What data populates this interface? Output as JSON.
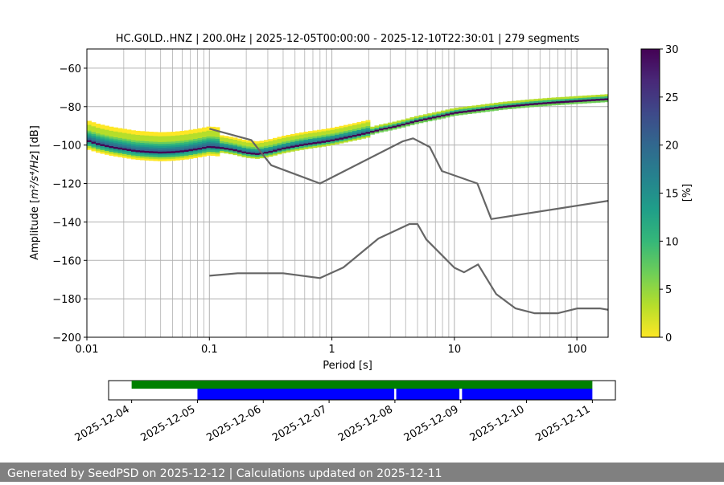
{
  "chart_data": [
    {
      "type": "heatmap",
      "title": "HC.G0LD..HNZ | 200.0Hz | 2025-12-05T00:00:00 - 2025-12-10T22:30:01 | 279 segments",
      "xlabel": "Period [s]",
      "ylabel_prefix": "Amplitude [",
      "ylabel_math": "m²/s⁴/Hz",
      "ylabel_suffix": "] [dB]",
      "x_scale": "log",
      "xlim": [
        0.01,
        180
      ],
      "ylim": [
        -200,
        -50
      ],
      "x_ticks": [
        {
          "value": 0.01,
          "label": "0.01"
        },
        {
          "value": 0.1,
          "label": "0.1"
        },
        {
          "value": 1,
          "label": "1"
        },
        {
          "value": 10,
          "label": "10"
        },
        {
          "value": 100,
          "label": "100"
        }
      ],
      "y_ticks": [
        {
          "value": -60,
          "label": "−60"
        },
        {
          "value": -80,
          "label": "−80"
        },
        {
          "value": -100,
          "label": "−100"
        },
        {
          "value": -120,
          "label": "−120"
        },
        {
          "value": -140,
          "label": "−140"
        },
        {
          "value": -160,
          "label": "−160"
        },
        {
          "value": -180,
          "label": "−180"
        },
        {
          "value": -200,
          "label": "−200"
        }
      ],
      "grid": true,
      "colorbar": {
        "label": "[%]",
        "range": [
          0,
          30
        ],
        "ticks": [
          {
            "value": 0,
            "label": "0"
          },
          {
            "value": 5,
            "label": "5"
          },
          {
            "value": 10,
            "label": "10"
          },
          {
            "value": 15,
            "label": "15"
          },
          {
            "value": 20,
            "label": "20"
          },
          {
            "value": 25,
            "label": "25"
          },
          {
            "value": 30,
            "label": "30"
          }
        ],
        "colormap": [
          "#fde725",
          "#b5de2b",
          "#6ece58",
          "#35b779",
          "#1f9e89",
          "#26828e",
          "#31688e",
          "#3e4989",
          "#482878",
          "#440154"
        ]
      },
      "series": [
        {
          "name": "High noise model",
          "color": "#666666",
          "x": [
            0.1,
            0.22,
            0.32,
            0.8,
            3.8,
            4.6,
            6.3,
            7.9,
            15.4,
            20,
            180
          ],
          "y": [
            -91.5,
            -97.4,
            -110.5,
            -120,
            -98,
            -96.5,
            -101,
            -113.5,
            -120,
            -138.5,
            -129
          ]
        },
        {
          "name": "Low noise model",
          "color": "#666666",
          "x": [
            0.1,
            0.17,
            0.4,
            0.8,
            1.24,
            2.4,
            4.3,
            5,
            5.9,
            10,
            12,
            15.6,
            21.9,
            31.6,
            45,
            70,
            101,
            154,
            180
          ],
          "y": [
            -168,
            -166.7,
            -166.7,
            -169.2,
            -163.7,
            -148.6,
            -141.1,
            -141.1,
            -149.1,
            -163.8,
            -166.2,
            -162.1,
            -177.5,
            -185,
            -187.5,
            -187.5,
            -185,
            -185,
            -185.7
          ]
        }
      ],
      "density": [
        {
          "x": [
            0.01,
            0.0125,
            0.016,
            0.02,
            0.025,
            0.032,
            0.04,
            0.05,
            0.063,
            0.08,
            0.1,
            0.13,
            0.16,
            0.2,
            0.25,
            0.32,
            0.4,
            0.5,
            0.63,
            0.8,
            1,
            1.26,
            1.6,
            2,
            2.5,
            3.2,
            4,
            5,
            6.3,
            8,
            10,
            12.6,
            16,
            20,
            25,
            32,
            40,
            50,
            63,
            80,
            100,
            126,
            160,
            180
          ],
          "y": [
            -97.5,
            -99.5,
            -101,
            -102,
            -103,
            -103.5,
            -103.8,
            -103.6,
            -103,
            -102,
            -100.8,
            -101.5,
            -102.5,
            -104,
            -104.6,
            -103.3,
            -101.7,
            -100.5,
            -99.4,
            -98.5,
            -97.5,
            -96.2,
            -94.8,
            -93.4,
            -91.8,
            -90.4,
            -88.9,
            -87.3,
            -86,
            -84.6,
            -83.2,
            -82.4,
            -81.6,
            -80.8,
            -80,
            -79.4,
            -78.8,
            -78.3,
            -77.8,
            -77.4,
            -77,
            -76.6,
            -76.2,
            -76
          ]
        }
      ]
    },
    {
      "type": "timeline",
      "start_date": "2025-12-04",
      "end_date": "2025-12-11",
      "tick_labels": [
        "2025-12-04",
        "2025-12-05",
        "2025-12-06",
        "2025-12-07",
        "2025-12-08",
        "2025-12-09",
        "2025-12-10",
        "2025-12-11"
      ],
      "xlim": [
        -0.35,
        7.35
      ],
      "available": {
        "color": "#008000",
        "spans": [
          [
            0.0,
            7.0
          ]
        ]
      },
      "used": {
        "color": "#0000ff",
        "spans": [
          [
            1.0,
            3.99
          ],
          [
            4.02,
            4.98
          ],
          [
            5.02,
            7.0
          ]
        ]
      }
    }
  ],
  "footer": {
    "text": "Generated by SeedPSD on 2025-12-12 | Calculations updated on 2025-12-11"
  }
}
